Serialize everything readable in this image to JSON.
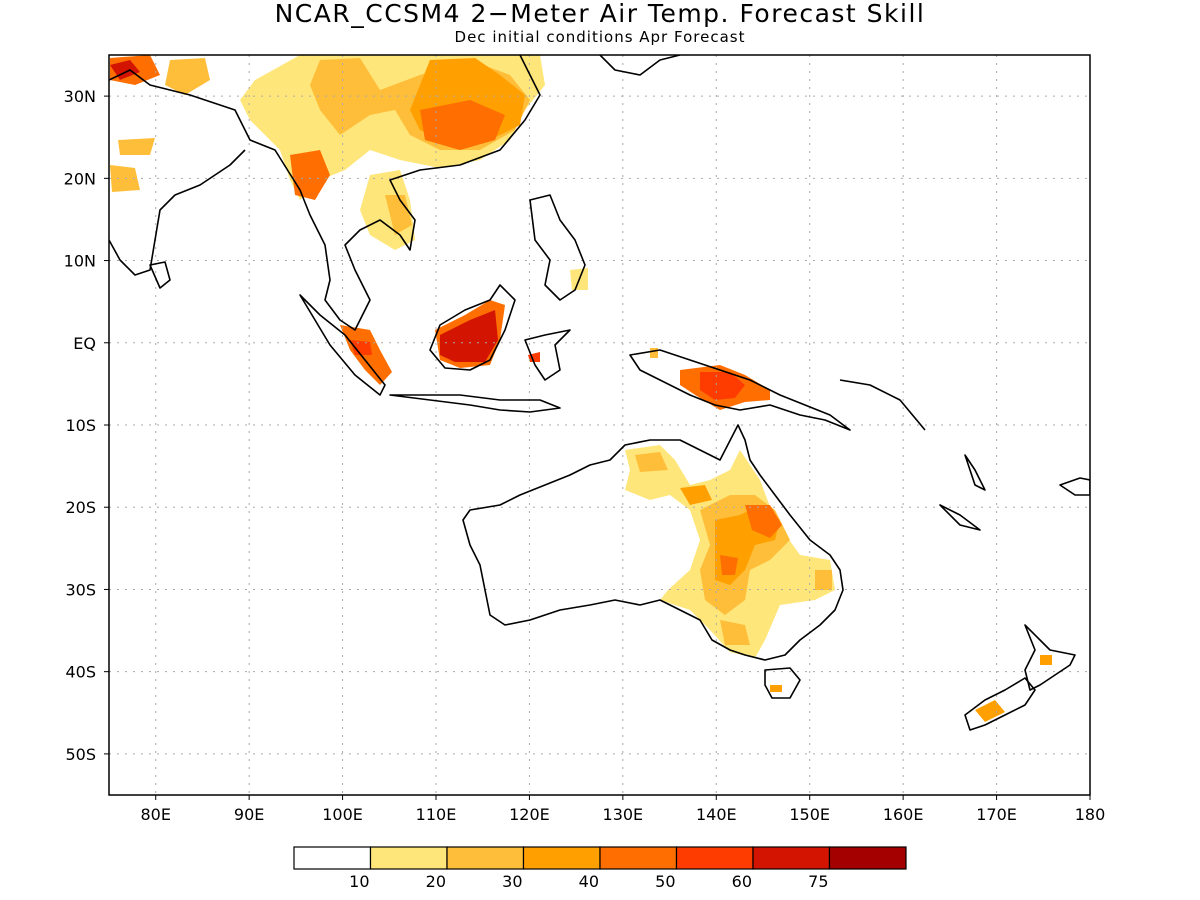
{
  "title": "NCAR_CCSM4 2−Meter Air Temp. Forecast Skill",
  "subtitle": "Dec initial conditions  Apr Forecast",
  "lon_labels": [
    "80E",
    "90E",
    "100E",
    "110E",
    "120E",
    "130E",
    "140E",
    "150E",
    "160E",
    "170E",
    "180"
  ],
  "lat_labels": [
    "30N",
    "20N",
    "10N",
    "EQ",
    "10S",
    "20S",
    "30S",
    "40S",
    "50S"
  ],
  "colorbar": {
    "colors": [
      "#ffffff",
      "#ffe67a",
      "#ffbe3a",
      "#ffa000",
      "#ff6e00",
      "#ff3c00",
      "#d21400",
      "#a50000"
    ],
    "labels": [
      "10",
      "20",
      "30",
      "40",
      "50",
      "60",
      "75"
    ]
  },
  "map_extent": {
    "lon": [
      75,
      180
    ],
    "lat": [
      -55,
      35
    ]
  }
}
